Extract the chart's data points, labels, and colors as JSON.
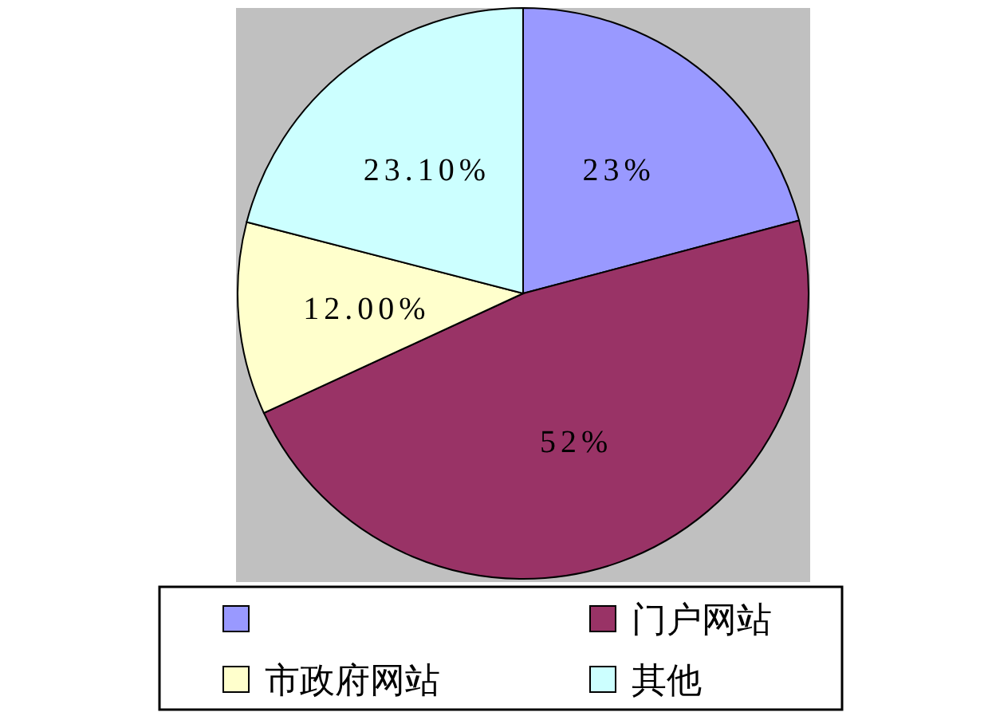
{
  "chart_data": {
    "type": "pie",
    "categories": [
      null,
      "门户网站",
      "市政府网站",
      "其他"
    ],
    "values": [
      23,
      52,
      12.0,
      23.1
    ],
    "colors": [
      "#9999ff",
      "#993366",
      "#ffffcc",
      "#ccffff"
    ],
    "value_labels": [
      "23%",
      "52%",
      "12.00%",
      "23.10%"
    ],
    "legend": "bottom"
  }
}
